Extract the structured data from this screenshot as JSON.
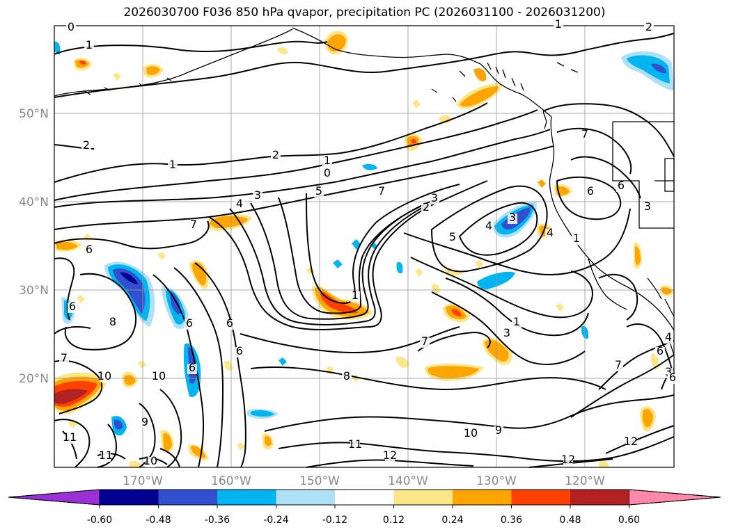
{
  "title": "2026030700 F036 850 hPa qvapor, precipitation PC (2026031100 - 2026031200)",
  "map": {
    "lat_ticks": [
      "50°N",
      "40°N",
      "30°N",
      "20°N"
    ],
    "lon_ticks": [
      "170°W",
      "160°W",
      "150°W",
      "140°W",
      "130°W",
      "120°W"
    ],
    "grid": true
  },
  "colorbar": {
    "colors": [
      "#9b30d9",
      "#000090",
      "#3050d0",
      "#00b4f0",
      "#aee0f8",
      "#ffffff",
      "#fde68a",
      "#ffa500",
      "#ff4000",
      "#b22222",
      "#ff88aa"
    ],
    "tick_labels": [
      "-0.60",
      "-0.48",
      "-0.36",
      "-0.24",
      "-0.12",
      "0.12",
      "0.24",
      "0.36",
      "0.48",
      "0.60"
    ]
  },
  "contour_labels": [
    "0",
    "1",
    "2",
    "1",
    "2",
    "1",
    "0",
    "5",
    "7",
    "4",
    "3",
    "7",
    "6",
    "2",
    "3",
    "4",
    "3",
    "5",
    "6",
    "6",
    "8",
    "6",
    "6",
    "6",
    "10",
    "10",
    "9",
    "7",
    "11",
    "11",
    "10",
    "8",
    "11",
    "12",
    "10",
    "9",
    "7",
    "7",
    "1",
    "3",
    "12",
    "12",
    "7",
    "6",
    "6",
    "3",
    "4",
    "1",
    "1",
    "2",
    "3",
    "6",
    "6",
    "1",
    "4"
  ]
}
